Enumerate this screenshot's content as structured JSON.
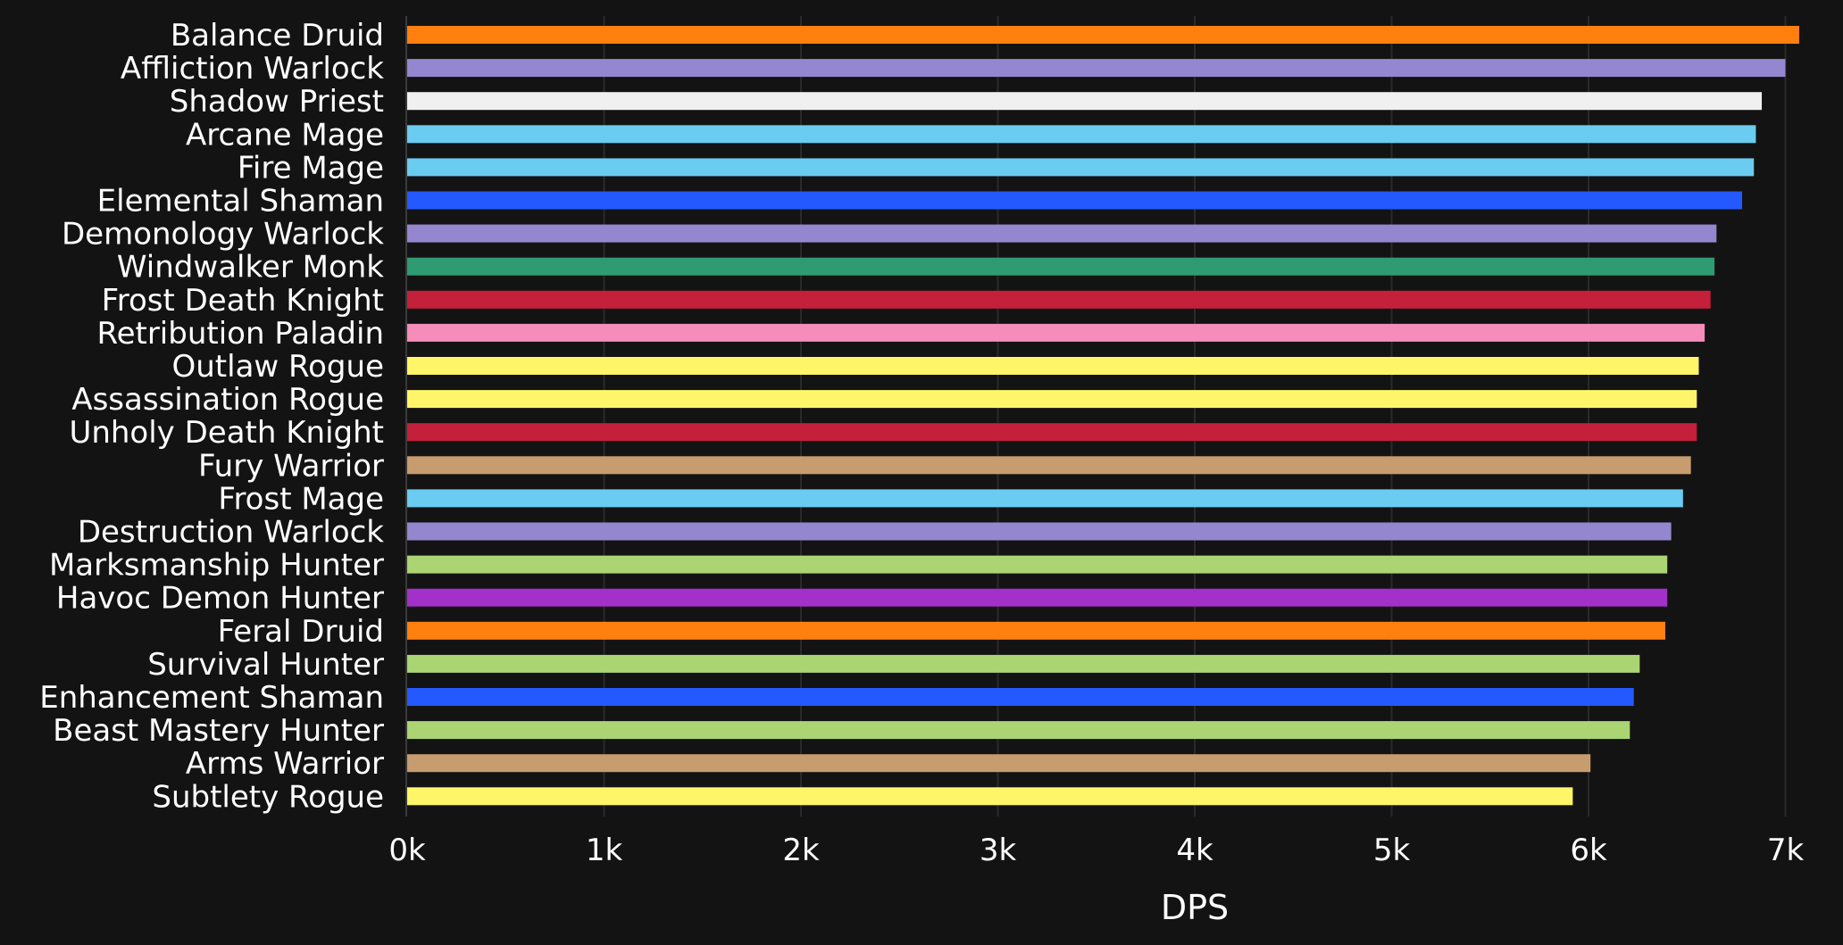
{
  "chart_data": {
    "type": "bar",
    "orientation": "horizontal",
    "categories": [
      "Balance Druid",
      "Affliction Warlock",
      "Shadow Priest",
      "Arcane Mage",
      "Fire Mage",
      "Elemental Shaman",
      "Demonology Warlock",
      "Windwalker Monk",
      "Frost Death Knight",
      "Retribution Paladin",
      "Outlaw Rogue",
      "Assassination Rogue",
      "Unholy Death Knight",
      "Fury Warrior",
      "Frost Mage",
      "Destruction Warlock",
      "Marksmanship Hunter",
      "Havoc Demon Hunter",
      "Feral Druid",
      "Survival Hunter",
      "Enhancement Shaman",
      "Beast Mastery Hunter",
      "Arms Warrior",
      "Subtlety Rogue"
    ],
    "values": [
      7070,
      7000,
      6880,
      6850,
      6840,
      6780,
      6650,
      6640,
      6620,
      6590,
      6560,
      6550,
      6550,
      6520,
      6480,
      6420,
      6400,
      6400,
      6390,
      6260,
      6230,
      6210,
      6010,
      5920
    ],
    "colors": [
      "#FF7C0A",
      "#8788EE",
      "#F0F0F0",
      "#3FC7EB",
      "#3FC7EB",
      "#0070DD",
      "#8788EE",
      "#00FF98",
      "#C41E3A",
      "#F48CBA",
      "#FFF468",
      "#FFF468",
      "#C41E3A",
      "#C69B6D",
      "#3FC7EB",
      "#8788EE",
      "#AAD372",
      "#A330C9",
      "#FF7C0A",
      "#AAD372",
      "#0070DD",
      "#AAD372",
      "#C69B6D",
      "#FFF468"
    ],
    "display_colors": [
      "#FF7F0F",
      "#9487CF",
      "#F0F0F0",
      "#69CCF0",
      "#69CCF0",
      "#2459FF",
      "#9487CF",
      "#2E9B73",
      "#C41F3B",
      "#F58CBA",
      "#FFF569",
      "#FFF569",
      "#C41F3B",
      "#C79C6E",
      "#69CCF0",
      "#9487CF",
      "#ABD473",
      "#A330C9",
      "#FF7F0F",
      "#ABD473",
      "#2459FF",
      "#ABD473",
      "#C79C6E",
      "#FFF569"
    ],
    "xlabel": "DPS",
    "ylabel": "",
    "title": "",
    "xlim": [
      0,
      7000
    ],
    "xticks": [
      0,
      1000,
      2000,
      3000,
      4000,
      5000,
      6000,
      7000
    ],
    "xtick_labels": [
      "0k",
      "1k",
      "2k",
      "3k",
      "4k",
      "5k",
      "6k",
      "7k"
    ],
    "grid": true,
    "legend": "none",
    "background_color": "#131313",
    "grid_color": "#2A2A2A",
    "text_color": "#FFFFFF"
  }
}
